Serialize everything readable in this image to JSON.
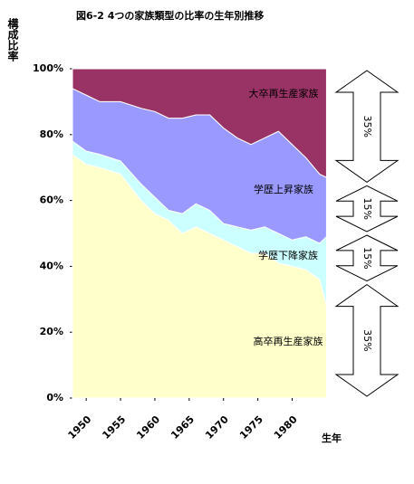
{
  "chart_data": {
    "type": "stacked_area",
    "title": "図6-2 4つの家族類型の比率の生年別推移",
    "y_label": "構成比率",
    "x_label": "生年",
    "x": [
      1948,
      1950,
      1952,
      1955,
      1958,
      1960,
      1962,
      1964,
      1966,
      1968,
      1970,
      1972,
      1974,
      1976,
      1978,
      1980,
      1982,
      1984,
      1985
    ],
    "series": [
      {
        "name": "高卒再生産家族",
        "color": "#ffffcc",
        "values": [
          74,
          71,
          70,
          68,
          60,
          56,
          54,
          50,
          52,
          50,
          48,
          46,
          44,
          44,
          41,
          40,
          39,
          36,
          28
        ]
      },
      {
        "name": "学歴下降家族",
        "color": "#ccffff",
        "values": [
          4,
          4,
          4,
          4,
          5,
          5,
          3,
          6,
          7,
          7,
          5,
          6,
          7,
          8,
          9,
          8,
          10,
          11,
          21
        ]
      },
      {
        "name": "学歴上昇家族",
        "color": "#9999ff",
        "values": [
          16,
          17,
          16,
          18,
          23,
          26,
          28,
          29,
          27,
          29,
          29,
          27,
          26,
          27,
          31,
          29,
          24,
          21,
          18
        ]
      },
      {
        "name": "大卒再生産家族",
        "color": "#993366",
        "values": [
          6,
          8,
          10,
          10,
          12,
          13,
          15,
          15,
          14,
          14,
          18,
          21,
          23,
          21,
          19,
          23,
          27,
          32,
          33
        ]
      }
    ],
    "xlim": [
      1948,
      1986
    ],
    "xticks": [
      1950,
      1955,
      1960,
      1965,
      1970,
      1975,
      1980
    ],
    "ylim": [
      0,
      100
    ],
    "yticks": [
      {
        "value": 0,
        "label": "0%"
      },
      {
        "value": 20,
        "label": "20%"
      },
      {
        "value": 40,
        "label": "40%"
      },
      {
        "value": 60,
        "label": "60%"
      },
      {
        "value": 80,
        "label": "80%"
      },
      {
        "value": 100,
        "label": "100%"
      }
    ],
    "annotations": [
      {
        "text": "35%",
        "from": 100,
        "to": 65
      },
      {
        "text": "15%",
        "from": 65,
        "to": 50
      },
      {
        "text": "15%",
        "from": 50,
        "to": 35
      },
      {
        "text": "35%",
        "from": 35,
        "to": 0
      }
    ]
  }
}
